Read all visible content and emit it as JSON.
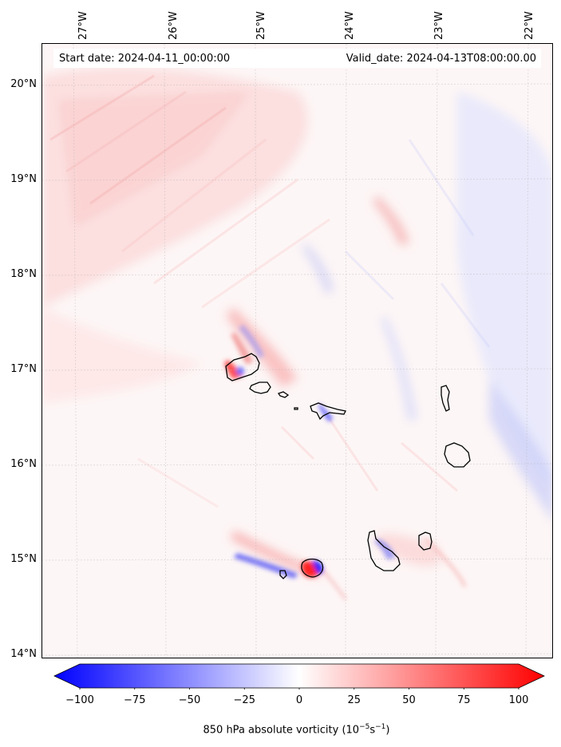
{
  "map": {
    "start_date": "Start date: 2024-04-11_00:00:00",
    "valid_date": "Valid_date: 2024-04-13T08:00:00.00",
    "longitude_labels": [
      "27°W",
      "26°W",
      "25°W",
      "24°W",
      "23°W",
      "22°W"
    ],
    "latitude_labels": [
      "20°N",
      "19°N",
      "18°N",
      "17°N",
      "16°N",
      "15°N",
      "14°N"
    ],
    "colorbar": {
      "label_prefix": "850 hPa absolute vorticity (10",
      "label_exp1": "−5",
      "label_mid": "s",
      "label_exp2": "−1",
      "label_suffix": ")",
      "ticks": [
        "−100",
        "−75",
        "−50",
        "−25",
        "0",
        "25",
        "50",
        "75",
        "100"
      ],
      "min": -100,
      "max": 100,
      "cmap": "bwr",
      "colors": {
        "low": "#0000ff",
        "mid": "#ffffff",
        "high": "#ff0000"
      }
    },
    "coastline_color": "#000000",
    "islands": [
      "Santo Antão",
      "São Vicente",
      "Santa Luzia",
      "São Nicolau",
      "Sal",
      "Boa Vista",
      "Santiago",
      "Fogo",
      "Brava",
      "Maio"
    ]
  }
}
